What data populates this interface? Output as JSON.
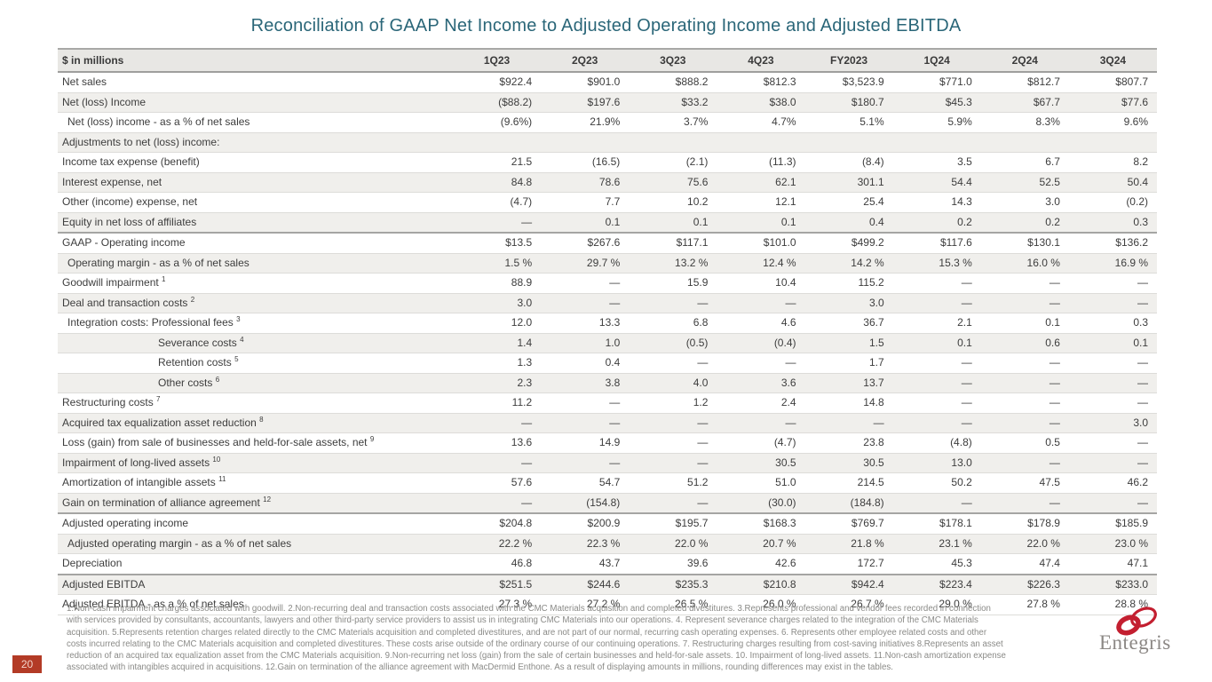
{
  "title": "Reconciliation of GAAP Net Income to Adjusted Operating Income and Adjusted EBITDA",
  "colors": {
    "title_teal": "#2a6678",
    "header_bg": "#e8e7e4",
    "row_stripe": "#f0efec",
    "border_dark": "#a5a5a3",
    "border_light": "#dddcd9",
    "badge_bg": "#b33b26",
    "badge_text": "#f2d3c9",
    "logo_red": "#c31f30",
    "logo_gray": "#8b8784",
    "footnote_gray": "#8a8a87"
  },
  "table": {
    "corner_label": "$ in millions",
    "columns": [
      "1Q23",
      "2Q23",
      "3Q23",
      "4Q23",
      "FY2023",
      "1Q24",
      "2Q24",
      "3Q24"
    ],
    "rows": [
      {
        "label": "Net sales",
        "indent": 0,
        "values": [
          "$922.4",
          "$901.0",
          "$888.2",
          "$812.3",
          "$3,523.9",
          "$771.0",
          "$812.7",
          "$807.7"
        ]
      },
      {
        "label": "Net (loss) Income",
        "indent": 0,
        "values": [
          "($88.2)",
          "$197.6",
          "$33.2",
          "$38.0",
          "$180.7",
          "$45.3",
          "$67.7",
          "$77.6"
        ]
      },
      {
        "label": "Net (loss) income - as a % of net sales",
        "indent": 1,
        "values": [
          "(9.6%)",
          "21.9%",
          "3.7%",
          "4.7%",
          "5.1%",
          "5.9%",
          "8.3%",
          "9.6%"
        ]
      },
      {
        "label": "Adjustments to net (loss) income:",
        "indent": 0,
        "values": [
          "",
          "",
          "",
          "",
          "",
          "",
          "",
          ""
        ]
      },
      {
        "label": "Income tax expense (benefit)",
        "indent": 0,
        "values": [
          "21.5",
          "(16.5)",
          "(2.1)",
          "(11.3)",
          "(8.4)",
          "3.5",
          "6.7",
          "8.2"
        ]
      },
      {
        "label": "Interest expense, net",
        "indent": 0,
        "values": [
          "84.8",
          "78.6",
          "75.6",
          "62.1",
          "301.1",
          "54.4",
          "52.5",
          "50.4"
        ]
      },
      {
        "label": "Other (income) expense, net",
        "indent": 0,
        "values": [
          "(4.7)",
          "7.7",
          "10.2",
          "12.1",
          "25.4",
          "14.3",
          "3.0",
          "(0.2)"
        ]
      },
      {
        "label": "Equity in net loss of affiliates",
        "indent": 0,
        "section_end": true,
        "values": [
          "—",
          "0.1",
          "0.1",
          "0.1",
          "0.4",
          "0.2",
          "0.2",
          "0.3"
        ]
      },
      {
        "label": "GAAP - Operating income",
        "indent": 0,
        "values": [
          "$13.5",
          "$267.6",
          "$117.1",
          "$101.0",
          "$499.2",
          "$117.6",
          "$130.1",
          "$136.2"
        ]
      },
      {
        "label": "Operating margin - as a % of net sales",
        "indent": 1,
        "values": [
          "1.5 %",
          "29.7 %",
          "13.2 %",
          "12.4 %",
          "14.2 %",
          "15.3 %",
          "16.0 %",
          "16.9 %"
        ]
      },
      {
        "label": "Goodwill impairment",
        "sup": "1",
        "indent": 0,
        "values": [
          "88.9",
          "—",
          "15.9",
          "10.4",
          "115.2",
          "—",
          "—",
          "—"
        ]
      },
      {
        "label": "Deal and transaction costs",
        "sup": "2",
        "indent": 0,
        "values": [
          "3.0",
          "—",
          "—",
          "—",
          "3.0",
          "—",
          "—",
          "—"
        ]
      },
      {
        "label": "Integration costs: Professional fees",
        "sup": "3",
        "indent": 1,
        "values": [
          "12.0",
          "13.3",
          "6.8",
          "4.6",
          "36.7",
          "2.1",
          "0.1",
          "0.3"
        ]
      },
      {
        "label": "Severance costs",
        "sup": "4",
        "indent": 2,
        "values": [
          "1.4",
          "1.0",
          "(0.5)",
          "(0.4)",
          "1.5",
          "0.1",
          "0.6",
          "0.1"
        ]
      },
      {
        "label": "Retention costs",
        "sup": "5",
        "indent": 2,
        "values": [
          "1.3",
          "0.4",
          "—",
          "—",
          "1.7",
          "—",
          "—",
          "—"
        ]
      },
      {
        "label": "Other costs",
        "sup": "6",
        "indent": 2,
        "values": [
          "2.3",
          "3.8",
          "4.0",
          "3.6",
          "13.7",
          "—",
          "—",
          "—"
        ]
      },
      {
        "label": "Restructuring costs",
        "sup": "7",
        "indent": 0,
        "values": [
          "11.2",
          "—",
          "1.2",
          "2.4",
          "14.8",
          "—",
          "—",
          "—"
        ]
      },
      {
        "label": "Acquired tax equalization asset reduction",
        "sup": "8",
        "indent": 0,
        "values": [
          "—",
          "—",
          "—",
          "—",
          "—",
          "—",
          "—",
          "3.0"
        ]
      },
      {
        "label": "Loss (gain) from sale of businesses and held-for-sale assets, net",
        "sup": "9",
        "indent": 0,
        "values": [
          "13.6",
          "14.9",
          "—",
          "(4.7)",
          "23.8",
          "(4.8)",
          "0.5",
          "—"
        ]
      },
      {
        "label": "Impairment of long-lived assets",
        "sup": "10",
        "indent": 0,
        "values": [
          "—",
          "—",
          "—",
          "30.5",
          "30.5",
          "13.0",
          "—",
          "—"
        ]
      },
      {
        "label": "Amortization of intangible assets",
        "sup": "11",
        "indent": 0,
        "values": [
          "57.6",
          "54.7",
          "51.2",
          "51.0",
          "214.5",
          "50.2",
          "47.5",
          "46.2"
        ]
      },
      {
        "label": "Gain on termination of alliance agreement",
        "sup": "12",
        "indent": 0,
        "section_end": true,
        "values": [
          "—",
          "(154.8)",
          "—",
          "(30.0)",
          "(184.8)",
          "—",
          "—",
          "—"
        ]
      },
      {
        "label": "Adjusted operating income",
        "indent": 0,
        "values": [
          "$204.8",
          "$200.9",
          "$195.7",
          "$168.3",
          "$769.7",
          "$178.1",
          "$178.9",
          "$185.9"
        ]
      },
      {
        "label": "Adjusted operating margin - as a % of net sales",
        "indent": 1,
        "values": [
          "22.2 %",
          "22.3 %",
          "22.0 %",
          "20.7 %",
          "21.8 %",
          "23.1 %",
          "22.0 %",
          "23.0 %"
        ]
      },
      {
        "label": "Depreciation",
        "indent": 0,
        "section_end": true,
        "values": [
          "46.8",
          "43.7",
          "39.6",
          "42.6",
          "172.7",
          "45.3",
          "47.4",
          "47.1"
        ]
      },
      {
        "label": "Adjusted EBITDA",
        "indent": 0,
        "values": [
          "$251.5",
          "$244.6",
          "$235.3",
          "$210.8",
          "$942.4",
          "$223.4",
          "$226.3",
          "$233.0"
        ]
      },
      {
        "label": "Adjusted EBITDA - as a % of net sales",
        "indent": 0,
        "values": [
          "27.3 %",
          "27.2 %",
          "26.5 %",
          "26.0 %",
          "26.7 %",
          "29.0 %",
          "27.8 %",
          "28.8 %"
        ]
      }
    ]
  },
  "footnotes": [
    "1.Non-cash impairment charges associated with goodwill.  2.Non-recurring deal and transaction costs associated with the CMC Materials acquisition and completed divestitures.  3.Represents professional and vendor fees recorded in connection",
    "with services provided by consultants, accountants, lawyers and other third-party service providers to assist us in integrating CMC Materials into our operations.  4. Represent severance charges related to the integration of the CMC Materials",
    "acquisition.  5.Represents retention charges related directly to the CMC Materials acquisition and completed divestitures, and are not part of our normal, recurring cash operating expenses.  6. Represents other employee related costs and other",
    "costs incurred relating to the CMC Materials acquisition and completed divestitures.  These costs arise outside of the ordinary course of our continuing operations.  7. Restructuring charges resulting from cost-saving initiatives  8.Represents an asset",
    "reduction of an acquired tax equalization asset from the CMC Materials acquisition. 9.Non-recurring net loss (gain) from the sale of certain businesses and held-for-sale assets. 10. Impairment of long-lived assets. 11.Non-cash amortization expense",
    "associated with intangibles acquired in acquisitions.  12.Gain on termination of the alliance agreement with MacDermid Enthone.  As a result of displaying amounts in millions, rounding differences may exist in the tables."
  ],
  "page_number": "20",
  "logo": {
    "text": "Entegris",
    "rings_icon": "entegris-rings-icon"
  }
}
